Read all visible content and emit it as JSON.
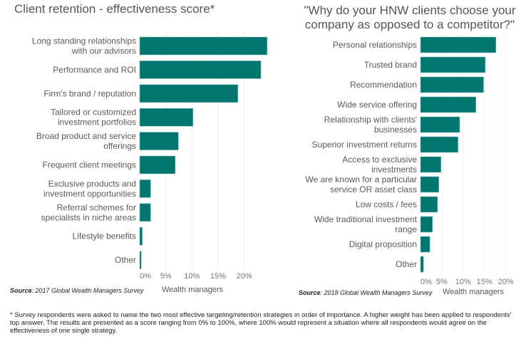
{
  "chart_data": [
    {
      "type": "bar",
      "orientation": "horizontal",
      "title": "Client retention - effectiveness score*",
      "xlabel": "Wealth managers",
      "ylabel": "",
      "xlim": [
        0,
        25
      ],
      "xticks": [
        "0%",
        "5%",
        "10%",
        "15%",
        "20%"
      ],
      "grid": true,
      "categories": [
        [
          "Long standing relationships",
          "with our advisors"
        ],
        [
          "Performance and ROI"
        ],
        [
          "Firm's brand / reputation"
        ],
        [
          "Tailored or customized",
          "investment portfolios"
        ],
        [
          "Broad product and service",
          "offerings"
        ],
        [
          "Frequent client meetings"
        ],
        [
          "Exclusive products and",
          "investment opportunities"
        ],
        [
          "Referral schemes for",
          "specialists in niche areas"
        ],
        [
          "Lifestyle benefits"
        ],
        [
          "Other"
        ]
      ],
      "values": [
        24.4,
        23.2,
        18.8,
        10.2,
        7.4,
        6.8,
        2.1,
        2.1,
        0.5,
        0.3
      ],
      "color": "#00766E",
      "source_label": "Source",
      "source_text": ": 2017 Global Wealth Managers Survey"
    },
    {
      "type": "bar",
      "orientation": "horizontal",
      "title": "\"Why do your HNW clients choose your company as opposed to a competitor?\"",
      "title_lines": [
        "\"Why do your HNW clients choose your",
        "company as opposed to a competitor?\""
      ],
      "xlabel": "Wealth managers",
      "ylabel": "",
      "xlim": [
        0,
        23
      ],
      "xticks": [
        "0%",
        "5%",
        "10%",
        "15%",
        "20%"
      ],
      "grid": true,
      "categories": [
        [
          "Personal relationships"
        ],
        [
          "Trusted brand"
        ],
        [
          "Recommendation"
        ],
        [
          "Wide service offering"
        ],
        [
          "Relationship with clients'",
          "businesses"
        ],
        [
          "Superior investment returns"
        ],
        [
          "Access to exclusive",
          "investments"
        ],
        [
          "We are known for a particular",
          "service OR asset class"
        ],
        [
          "Low costs / fees"
        ],
        [
          "Wide traditional investment",
          "range"
        ],
        [
          "Digital proposition"
        ],
        [
          "Other"
        ]
      ],
      "values": [
        17.7,
        15.2,
        14.8,
        13.0,
        9.2,
        8.8,
        4.8,
        4.3,
        4.0,
        2.8,
        2.2,
        0.7
      ],
      "color": "#00766E",
      "source_label": "Source",
      "source_text": ": 2018 Global Wealth Managers Survey"
    }
  ],
  "footnote": "* Survey respondents were asked to name the two most effective targeting/retention strategies in order of importance. A higher weight has been applied to respondents' top answer. The results are presented as a score ranging from 0% to 100%, where 100% would represent a situation where all respondents would agree on the effectiveness of one single strategy."
}
